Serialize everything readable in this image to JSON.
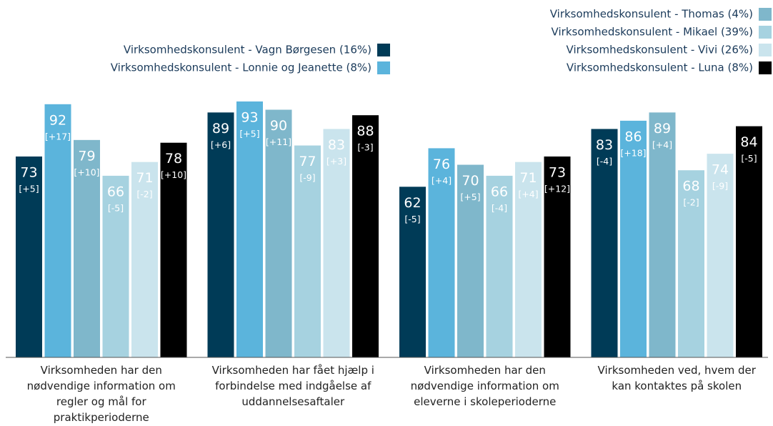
{
  "chart_data": {
    "type": "bar",
    "categories": [
      "Virksomheden har den nødvendige information om regler og mål for praktikperioderne",
      "Virksomheden har fået hjælp i forbindelse med indgåelse af uddannelsesaftaler",
      "Virksomheden har den nødvendige information om eleverne i skoleperioderne",
      "Virksomheden ved, hvem der kan kontaktes på skolen"
    ],
    "ylim": [
      0,
      100
    ],
    "series": [
      {
        "name": "Virksomhedskonsulent - Vagn Børgesen (16%)",
        "color": "#003b57",
        "values": [
          73,
          89,
          62,
          83
        ],
        "annotations": [
          "[+5]",
          "[+6]",
          "[-5]",
          "[-4]"
        ]
      },
      {
        "name": "Virksomhedskonsulent - Lonnie og Jeanette (8%)",
        "color": "#5bb4dc",
        "values": [
          92,
          93,
          76,
          86
        ],
        "annotations": [
          "[+17]",
          "[+5]",
          "[+4]",
          "[+18]"
        ]
      },
      {
        "name": "Virksomhedskonsulent - Thomas (4%)",
        "color": "#7fb7cb",
        "values": [
          79,
          90,
          70,
          89
        ],
        "annotations": [
          "[+10]",
          "[+11]",
          "[+5]",
          "[+4]"
        ]
      },
      {
        "name": "Virksomhedskonsulent - Mikael (39%)",
        "color": "#a6d2e0",
        "values": [
          66,
          77,
          66,
          68
        ],
        "annotations": [
          "[-5]",
          "[-9]",
          "[-4]",
          "[-2]"
        ]
      },
      {
        "name": "Virksomhedskonsulent - Vivi (26%)",
        "color": "#cae4ed",
        "values": [
          71,
          83,
          71,
          74
        ],
        "annotations": [
          "[-2]",
          "[+3]",
          "[+4]",
          "[-9]"
        ]
      },
      {
        "name": "Virksomhedskonsulent - Luna (8%)",
        "color": "#000000",
        "values": [
          78,
          88,
          73,
          84
        ],
        "annotations": [
          "[+10]",
          "[-3]",
          "[+12]",
          "[-5]"
        ]
      }
    ]
  }
}
